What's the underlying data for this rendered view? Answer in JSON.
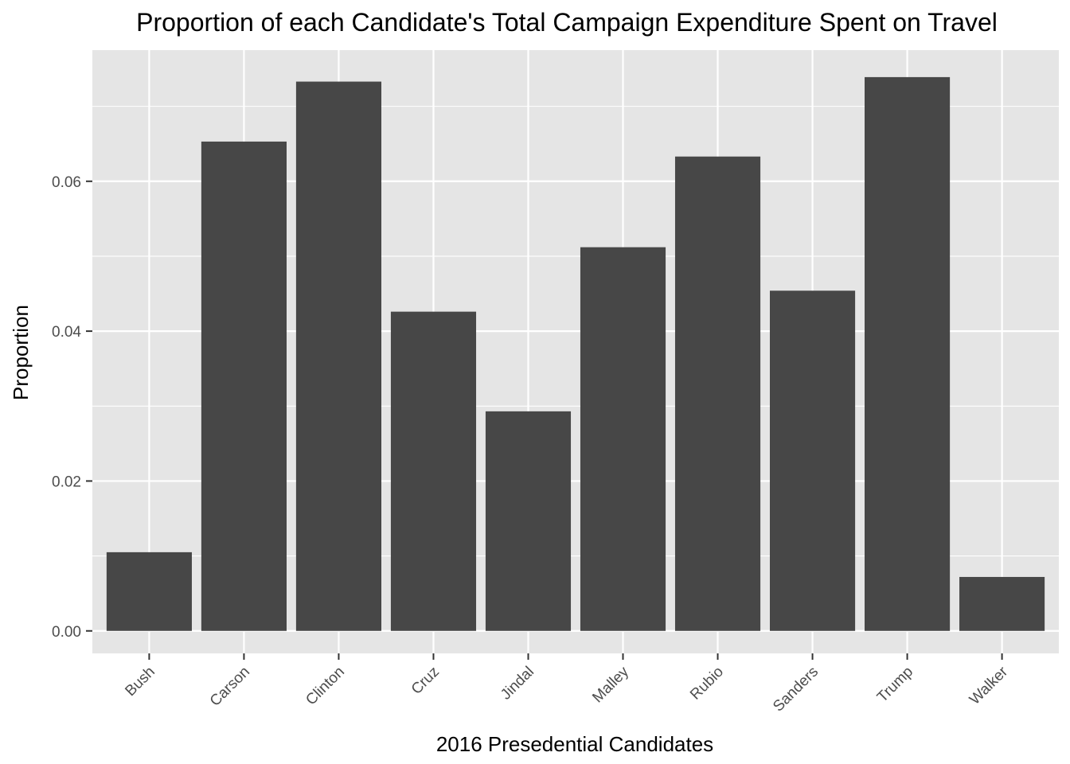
{
  "chart_data": {
    "type": "bar",
    "title": "Proportion of each Candidate's Total Campaign Expenditure Spent on Travel",
    "xlabel": "2016 Presedential Candidates",
    "ylabel": "Proportion",
    "categories": [
      "Bush",
      "Carson",
      "Clinton",
      "Cruz",
      "Jindal",
      "Malley",
      "Rubio",
      "Sanders",
      "Trump",
      "Walker"
    ],
    "values": [
      0.0105,
      0.0653,
      0.0733,
      0.0426,
      0.0293,
      0.0512,
      0.0633,
      0.0454,
      0.0739,
      0.0072
    ],
    "yticks": [
      "0.00",
      "0.02",
      "0.04",
      "0.06"
    ],
    "ylim": [
      -0.003,
      0.0775
    ],
    "grid": true,
    "colors": {
      "bar": "#474747",
      "panel": "#e5e5e5",
      "grid": "#ffffff",
      "tick": "#333333"
    }
  }
}
